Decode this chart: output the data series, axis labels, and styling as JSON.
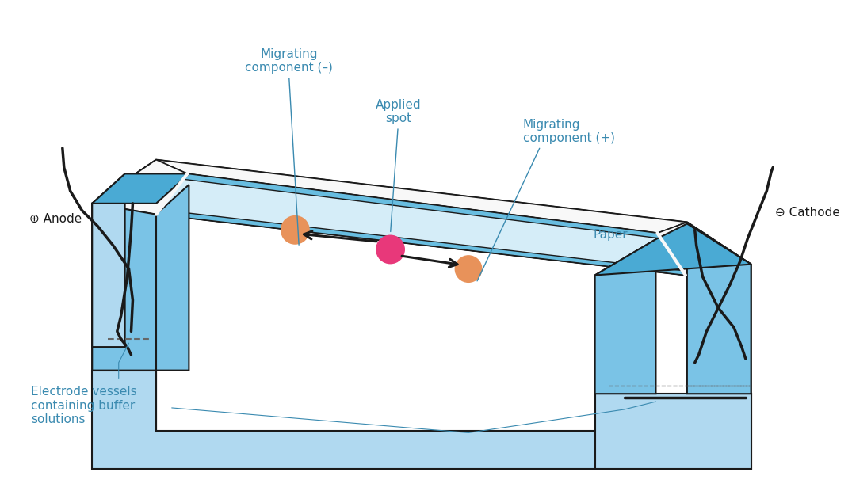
{
  "bg_color": "#ffffff",
  "blue_light": "#b8e0f5",
  "blue_mid": "#7ec8eb",
  "blue_dark": "#4aaad4",
  "blue_vessel": "#6bbfe8",
  "paper_color": "#d0ecf8",
  "outline_color": "#1a1a1a",
  "spot_pink": "#e8387a",
  "spot_orange": "#e8925a",
  "text_blue": "#3a8ab0",
  "text_black": "#1a1a1a",
  "label_anode": "⊕ Anode",
  "label_cathode": "⊖ Cathode",
  "label_migrating_neg": "Migrating\ncomponent (–)",
  "label_migrating_pos": "Migrating\ncomponent (+)",
  "label_applied": "Applied\nspot",
  "label_paper": "Paper",
  "label_electrode": "Electrode vessels\ncontaining buffer\nsolutions"
}
